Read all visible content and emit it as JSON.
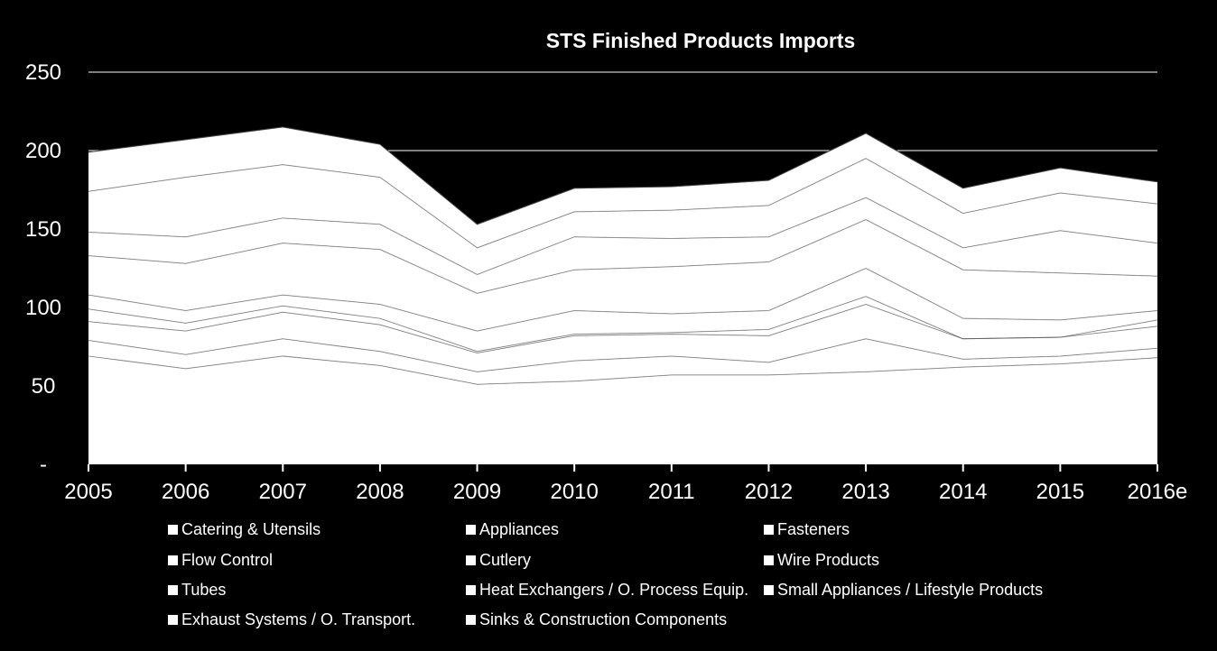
{
  "chart_data": {
    "type": "area",
    "title": "STS Finished Products Imports",
    "xlabel": "",
    "ylabel": "",
    "ylim": [
      0,
      250
    ],
    "yticks": [
      0,
      50,
      100,
      150,
      200,
      250
    ],
    "ytick_labels": [
      "-",
      "50",
      "100",
      "150",
      "200",
      "250"
    ],
    "grid": "horizontal",
    "legend_position": "bottom",
    "categories": [
      "2005",
      "2006",
      "2007",
      "2008",
      "2009",
      "2010",
      "2011",
      "2012",
      "2013",
      "2014",
      "2015",
      "2016e"
    ],
    "series": [
      {
        "name": "Catering & Utensils",
        "values": [
          69,
          61,
          69,
          63,
          51,
          53,
          57,
          57,
          59,
          62,
          64,
          68
        ]
      },
      {
        "name": "Appliances",
        "values": [
          10,
          9,
          11,
          9,
          8,
          13,
          12,
          8,
          21,
          5,
          5,
          6
        ]
      },
      {
        "name": "Fasteners",
        "values": [
          12,
          15,
          17,
          17,
          12,
          16,
          14,
          17,
          22,
          13,
          12,
          14
        ]
      },
      {
        "name": "Flow Control",
        "values": [
          8,
          5,
          4,
          4,
          1,
          1,
          1,
          4,
          5,
          0,
          0,
          4
        ]
      },
      {
        "name": "Cutlery",
        "values": [
          9,
          8,
          7,
          9,
          13,
          15,
          12,
          12,
          18,
          13,
          11,
          6
        ]
      },
      {
        "name": "Wire Products",
        "values": [
          25,
          30,
          33,
          35,
          24,
          26,
          30,
          31,
          31,
          31,
          30,
          22
        ]
      },
      {
        "name": "Tubes",
        "values": [
          15,
          17,
          16,
          16,
          12,
          21,
          18,
          16,
          14,
          14,
          27,
          21
        ]
      },
      {
        "name": "Heat Exchangers / O. Process Equip.",
        "values": [
          26,
          38,
          34,
          30,
          17,
          16,
          18,
          20,
          25,
          22,
          24,
          25
        ]
      },
      {
        "name": "Small Appliances / Lifestyle Products",
        "values": [
          25,
          24,
          24,
          21,
          15,
          15,
          15,
          16,
          16,
          16,
          16,
          14
        ]
      },
      {
        "name": "Exhaust Systems / O. Transport.",
        "values": [
          0,
          0,
          0,
          0,
          0,
          0,
          0,
          0,
          0,
          0,
          0,
          0
        ]
      },
      {
        "name": "Sinks & Construction Components",
        "values": [
          0,
          0,
          0,
          0,
          0,
          0,
          0,
          0,
          0,
          0,
          0,
          0
        ]
      }
    ],
    "colors": {
      "background": "#000000",
      "area_fill": "#FFFFFF",
      "text": "#FFFFFF",
      "boundary_line": "#3C3C3C",
      "grid": "#FFFFFF"
    }
  }
}
